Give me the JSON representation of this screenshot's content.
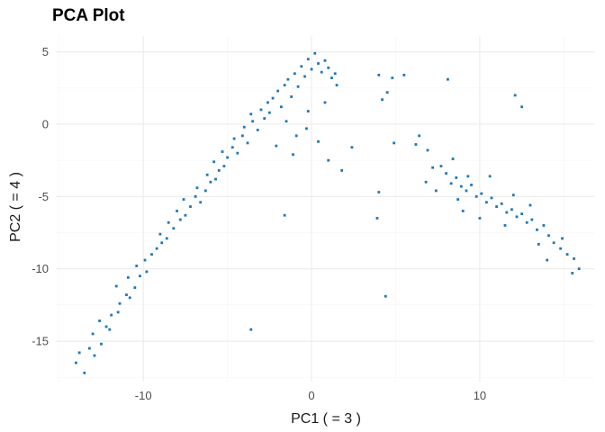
{
  "chart_data": {
    "type": "scatter",
    "title": "PCA Plot",
    "xlabel": "PC1 ( = 3 )",
    "ylabel": "PC2 ( = 4 )",
    "xlim": [
      -15.2,
      16.8
    ],
    "ylim": [
      -17.8,
      6.1
    ],
    "x_ticks": [
      -10,
      0,
      10
    ],
    "y_ticks": [
      -15,
      -10,
      -5,
      0,
      5
    ],
    "grid": true,
    "legend": "none",
    "point_color": "#1f77b4",
    "series": [
      {
        "points": [
          [
            -14,
            -16.5
          ],
          [
            -13.5,
            -17.2
          ],
          [
            -13.8,
            -15.8
          ],
          [
            -13.2,
            -15.5
          ],
          [
            -12.9,
            -16.0
          ],
          [
            -12.5,
            -15.2
          ],
          [
            -13.0,
            -14.5
          ],
          [
            -12.2,
            -14.0
          ],
          [
            -12.6,
            -13.6
          ],
          [
            -11.9,
            -13.2
          ],
          [
            -12.0,
            -14.2
          ],
          [
            -11.5,
            -13.0
          ],
          [
            -11.4,
            -12.4
          ],
          [
            -11.0,
            -11.8
          ],
          [
            -11.6,
            -11.2
          ],
          [
            -10.8,
            -12.0
          ],
          [
            -10.5,
            -11.3
          ],
          [
            -10.9,
            -10.6
          ],
          [
            -10.2,
            -10.5
          ],
          [
            -10.4,
            -9.8
          ],
          [
            -9.9,
            -9.4
          ],
          [
            -9.5,
            -9.0
          ],
          [
            -9.8,
            -10.2
          ],
          [
            -9.2,
            -8.6
          ],
          [
            -8.9,
            -8.2
          ],
          [
            -9.0,
            -7.6
          ],
          [
            -8.6,
            -7.9
          ],
          [
            -8.2,
            -7.2
          ],
          [
            -8.5,
            -6.8
          ],
          [
            -7.8,
            -6.6
          ],
          [
            -8.0,
            -6.0
          ],
          [
            -7.5,
            -6.3
          ],
          [
            -7.2,
            -5.7
          ],
          [
            -7.6,
            -5.2
          ],
          [
            -6.9,
            -5.0
          ],
          [
            -6.6,
            -5.4
          ],
          [
            -6.8,
            -4.4
          ],
          [
            -6.3,
            -4.6
          ],
          [
            -6.0,
            -4.0
          ],
          [
            -6.2,
            -3.5
          ],
          [
            -5.7,
            -3.8
          ],
          [
            -5.5,
            -3.2
          ],
          [
            -5.8,
            -2.6
          ],
          [
            -5.2,
            -2.9
          ],
          [
            -5.0,
            -2.3
          ],
          [
            -5.3,
            -1.9
          ],
          [
            -4.7,
            -1.6
          ],
          [
            -4.4,
            -2.0
          ],
          [
            -4.6,
            -1.0
          ],
          [
            -4.1,
            -0.8
          ],
          [
            -3.8,
            -1.3
          ],
          [
            -4.0,
            -0.2
          ],
          [
            -3.5,
            0.2
          ],
          [
            -3.2,
            -0.4
          ],
          [
            -3.6,
            0.7
          ],
          [
            -3.0,
            1.0
          ],
          [
            -2.8,
            0.4
          ],
          [
            -2.6,
            1.5
          ],
          [
            -2.3,
            1.8
          ],
          [
            -2.5,
            0.8
          ],
          [
            -2.0,
            2.3
          ],
          [
            -1.8,
            1.2
          ],
          [
            -1.6,
            2.7
          ],
          [
            -1.4,
            3.1
          ],
          [
            -1.2,
            1.9
          ],
          [
            -1.0,
            3.5
          ],
          [
            -0.8,
            2.6
          ],
          [
            -0.6,
            4.0
          ],
          [
            -0.4,
            3.3
          ],
          [
            -0.2,
            4.5
          ],
          [
            0.0,
            3.8
          ],
          [
            0.2,
            4.9
          ],
          [
            0.4,
            4.2
          ],
          [
            0.6,
            3.6
          ],
          [
            0.8,
            4.4
          ],
          [
            1.0,
            3.9
          ],
          [
            1.2,
            3.2
          ],
          [
            1.4,
            3.5
          ],
          [
            1.5,
            2.7
          ],
          [
            -1.5,
            0.2
          ],
          [
            -0.9,
            -0.8
          ],
          [
            -0.3,
            -0.3
          ],
          [
            -2.1,
            -1.5
          ],
          [
            -1.1,
            -2.1
          ],
          [
            0.4,
            -1.2
          ],
          [
            1.0,
            -2.5
          ],
          [
            1.8,
            -3.2
          ],
          [
            2.4,
            -1.6
          ],
          [
            -0.2,
            0.9
          ],
          [
            0.8,
            1.5
          ],
          [
            4.0,
            3.4
          ],
          [
            4.8,
            3.2
          ],
          [
            5.5,
            3.4
          ],
          [
            8.1,
            3.1
          ],
          [
            4.5,
            2.2
          ],
          [
            4.2,
            1.7
          ],
          [
            12.1,
            2.0
          ],
          [
            12.5,
            1.2
          ],
          [
            4.9,
            -1.3
          ],
          [
            4.0,
            -4.7
          ],
          [
            3.9,
            -6.5
          ],
          [
            -1.6,
            -6.3
          ],
          [
            -3.6,
            -14.2
          ],
          [
            4.4,
            -11.9
          ],
          [
            6.4,
            -0.8
          ],
          [
            6.2,
            -1.4
          ],
          [
            6.9,
            -1.8
          ],
          [
            7.2,
            -3.0
          ],
          [
            7.7,
            -2.9
          ],
          [
            8.0,
            -3.4
          ],
          [
            8.3,
            -4.1
          ],
          [
            8.6,
            -3.7
          ],
          [
            8.9,
            -4.3
          ],
          [
            9.2,
            -4.6
          ],
          [
            9.5,
            -4.2
          ],
          [
            9.8,
            -5.0
          ],
          [
            10.1,
            -4.8
          ],
          [
            10.4,
            -5.4
          ],
          [
            10.7,
            -5.1
          ],
          [
            11.0,
            -5.7
          ],
          [
            11.3,
            -5.5
          ],
          [
            11.6,
            -6.1
          ],
          [
            11.9,
            -5.9
          ],
          [
            12.2,
            -6.4
          ],
          [
            12.5,
            -6.2
          ],
          [
            12.8,
            -6.8
          ],
          [
            13.1,
            -6.6
          ],
          [
            13.4,
            -7.3
          ],
          [
            13.8,
            -7.0
          ],
          [
            14.1,
            -7.7
          ],
          [
            14.4,
            -8.2
          ],
          [
            14.8,
            -8.6
          ],
          [
            15.2,
            -9.0
          ],
          [
            15.6,
            -9.3
          ],
          [
            15.9,
            -10.0
          ],
          [
            15.5,
            -10.3
          ],
          [
            14.0,
            -9.4
          ],
          [
            9.0,
            -6.0
          ],
          [
            8.4,
            -2.4
          ],
          [
            10.6,
            -3.6
          ],
          [
            7.4,
            -4.6
          ],
          [
            8.7,
            -5.2
          ],
          [
            11.5,
            -7.0
          ],
          [
            12.0,
            -4.9
          ],
          [
            13.0,
            -5.6
          ],
          [
            13.5,
            -8.3
          ],
          [
            14.9,
            -7.9
          ],
          [
            10.0,
            -6.5
          ],
          [
            9.3,
            -3.6
          ],
          [
            6.8,
            -4.0
          ]
        ]
      }
    ]
  }
}
